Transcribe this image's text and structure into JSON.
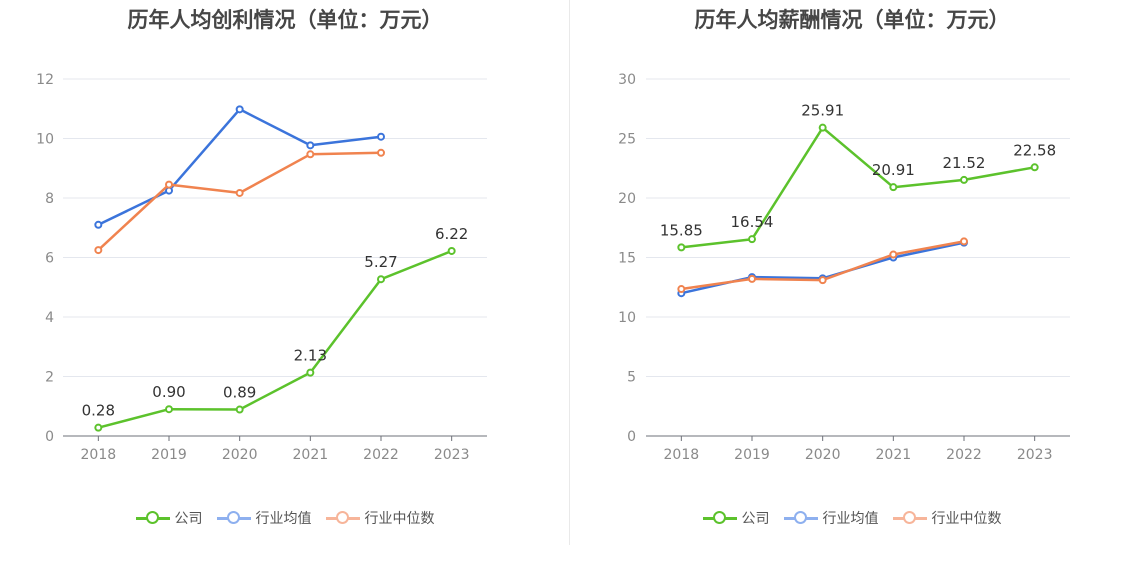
{
  "charts": [
    {
      "id": "left",
      "title": "历年人均创利情况（单位：万元）",
      "legend": [
        "公司",
        "行业均值",
        "行业中位数"
      ],
      "chart_data": {
        "type": "line",
        "categories": [
          "2018",
          "2019",
          "2020",
          "2021",
          "2022",
          "2023"
        ],
        "ylim": [
          0,
          12
        ],
        "yticks": [
          "0",
          "2",
          "4",
          "6",
          "8",
          "10",
          "12"
        ],
        "grid": true,
        "legend_position": "bottom",
        "series": [
          {
            "name": "公司",
            "color": "#5cc22c",
            "values": [
              0.28,
              0.9,
              0.89,
              2.13,
              5.27,
              6.22
            ],
            "labels": [
              "0.28",
              "0.90",
              "0.89",
              "2.13",
              "5.27",
              "6.22"
            ]
          },
          {
            "name": "行业均值",
            "color": "#3b74db",
            "values": [
              7.1,
              8.25,
              10.98,
              9.77,
              10.06,
              null
            ]
          },
          {
            "name": "行业中位数",
            "color": "#f0834f",
            "values": [
              6.25,
              8.45,
              8.17,
              9.47,
              9.52,
              null
            ]
          }
        ]
      }
    },
    {
      "id": "right",
      "title": "历年人均薪酬情况（单位：万元）",
      "legend": [
        "公司",
        "行业均值",
        "行业中位数"
      ],
      "chart_data": {
        "type": "line",
        "categories": [
          "2018",
          "2019",
          "2020",
          "2021",
          "2022",
          "2023"
        ],
        "ylim": [
          0,
          30
        ],
        "yticks": [
          "0",
          "5",
          "10",
          "15",
          "20",
          "25",
          "30"
        ],
        "grid": true,
        "legend_position": "bottom",
        "series": [
          {
            "name": "公司",
            "color": "#5cc22c",
            "values": [
              15.85,
              16.54,
              25.91,
              20.91,
              21.52,
              22.58
            ],
            "labels": [
              "15.85",
              "16.54",
              "25.91",
              "20.91",
              "21.52",
              "22.58"
            ]
          },
          {
            "name": "行业均值",
            "color": "#3b74db",
            "values": [
              12.0,
              13.35,
              13.25,
              15.0,
              16.25,
              null
            ]
          },
          {
            "name": "行业中位数",
            "color": "#f0834f",
            "values": [
              12.35,
              13.2,
              13.1,
              15.25,
              16.35,
              null
            ]
          }
        ]
      }
    }
  ],
  "legend_colors": {
    "公司": "#5cc22c",
    "行业均值": "#8eb0ef",
    "行业中位数": "#f7b59a"
  }
}
